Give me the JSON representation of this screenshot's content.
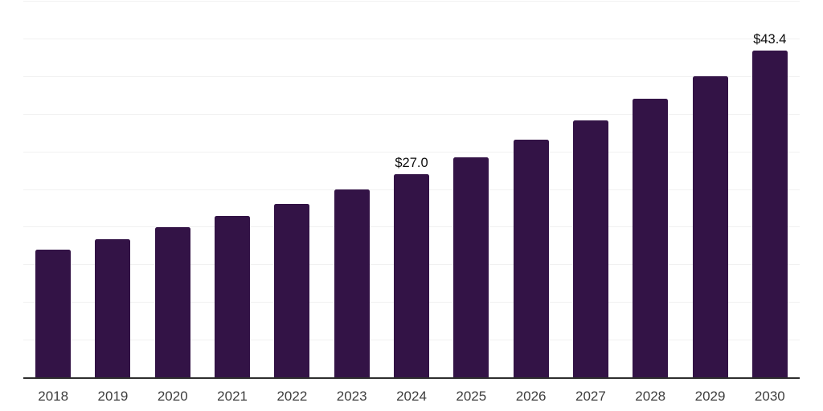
{
  "chart_data": {
    "type": "bar",
    "title": "",
    "xlabel": "",
    "ylabel": "",
    "categories": [
      "2018",
      "2019",
      "2020",
      "2021",
      "2022",
      "2023",
      "2024",
      "2025",
      "2026",
      "2027",
      "2028",
      "2029",
      "2030"
    ],
    "values": [
      16.9,
      18.3,
      19.9,
      21.4,
      23.0,
      24.9,
      27.0,
      29.2,
      31.6,
      34.1,
      37.0,
      40.0,
      43.4
    ],
    "bar_labels": [
      "",
      "",
      "",
      "",
      "",
      "",
      "$27.0",
      "",
      "",
      "",
      "",
      "",
      "$43.4"
    ],
    "ylim": [
      0,
      50
    ],
    "grid_step": 5,
    "grid": "horizontal-only",
    "legend_position": "none",
    "y_axis_ticks_visible": false,
    "colors": {
      "bar": "#331346",
      "gridline": "#f1f1f1",
      "axis_line": "#2e2e2e",
      "bar_value_label": "#0d0d0d",
      "x_tick_label": "#3d3d3d",
      "background": "#ffffff"
    }
  }
}
